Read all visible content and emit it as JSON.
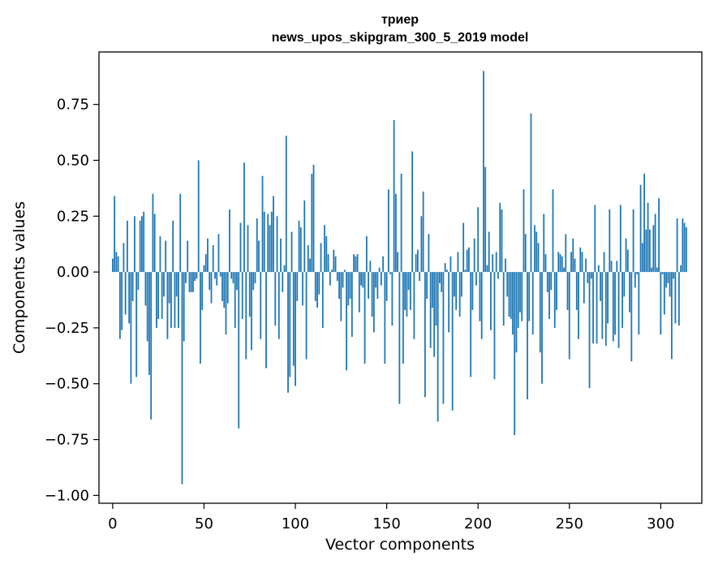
{
  "chart_data": {
    "type": "bar",
    "title": "триер",
    "subtitle": "news_upos_skipgram_300_5_2019 model",
    "xlabel": "Vector components",
    "ylabel": "Components values",
    "xlim": [
      -7.5,
      322.5
    ],
    "ylim": [
      -1.035,
      0.985
    ],
    "xticks": [
      0,
      50,
      100,
      150,
      200,
      250,
      300
    ],
    "yticks": [
      -1.0,
      -0.75,
      -0.5,
      -0.25,
      0.0,
      0.25,
      0.5,
      0.75
    ],
    "ytick_labels": [
      "−1.00",
      "−0.75",
      "−0.50",
      "−0.25",
      "0.00",
      "0.25",
      "0.50",
      "0.75"
    ],
    "bar_color": "#1f77b4",
    "grid": false,
    "legend": "none",
    "values": [
      0.06,
      0.34,
      0.09,
      0.07,
      -0.3,
      -0.26,
      0.13,
      -0.19,
      0.23,
      -0.23,
      -0.5,
      -0.13,
      0.25,
      -0.47,
      -0.08,
      0.23,
      0.25,
      0.27,
      -0.15,
      -0.31,
      -0.46,
      -0.66,
      0.35,
      0.26,
      -0.25,
      -0.21,
      0.16,
      -0.21,
      -0.11,
      0.14,
      -0.3,
      -0.14,
      -0.25,
      0.23,
      -0.25,
      -0.11,
      -0.25,
      0.35,
      -0.95,
      -0.31,
      -0.05,
      0.14,
      -0.09,
      -0.09,
      -0.09,
      -0.04,
      -0.03,
      0.5,
      -0.41,
      -0.17,
      0.03,
      0.08,
      0.15,
      -0.08,
      -0.14,
      0.12,
      -0.03,
      -0.06,
      0.17,
      -0.02,
      -0.13,
      -0.16,
      -0.28,
      -0.14,
      0.28,
      -0.03,
      -0.05,
      -0.25,
      -0.08,
      -0.7,
      0.22,
      -0.21,
      0.49,
      -0.39,
      0.21,
      -0.2,
      -0.35,
      -0.08,
      -0.05,
      0.24,
      0.14,
      -0.3,
      0.43,
      0.27,
      -0.43,
      0.26,
      0.21,
      0.27,
      0.34,
      -0.24,
      0.25,
      -0.3,
      0.15,
      -0.09,
      0.03,
      0.61,
      -0.54,
      -0.47,
      0.18,
      -0.42,
      -0.51,
      -0.13,
      0.23,
      0.2,
      -0.15,
      0.32,
      -0.39,
      0.12,
      0.06,
      0.44,
      0.48,
      -0.13,
      -0.16,
      -0.1,
      0.13,
      -0.25,
      0.21,
      0.16,
      0.08,
      -0.06,
      0.01,
      0.1,
      0.07,
      -0.04,
      -0.12,
      -0.22,
      -0.07,
      0.01,
      -0.44,
      -0.15,
      -0.12,
      -0.29,
      0.08,
      0.07,
      0.08,
      -0.18,
      -0.06,
      -0.07,
      -0.41,
      0.16,
      -0.12,
      0.05,
      -0.2,
      -0.27,
      -0.07,
      -0.12,
      0.02,
      -0.06,
      0.07,
      -0.41,
      -0.13,
      0.37,
      -0.01,
      -0.24,
      0.68,
      0.35,
      0.09,
      -0.59,
      0.44,
      -0.41,
      -0.17,
      -0.2,
      -0.08,
      -0.17,
      0.54,
      -0.3,
      0.08,
      0.1,
      -0.04,
      0.25,
      0.36,
      -0.56,
      -0.12,
      0.17,
      -0.34,
      -0.16,
      -0.38,
      -0.24,
      -0.67,
      -0.05,
      -0.09,
      -0.59,
      0.04,
      0.01,
      -0.27,
      0.07,
      -0.62,
      -0.11,
      -0.17,
      0.09,
      -0.2,
      -0.11,
      0.22,
      0.01,
      0.1,
      0.11,
      -0.47,
      -0.17,
      0.15,
      -0.06,
      0.29,
      -0.22,
      -0.3,
      0.9,
      0.47,
      0.03,
      0.18,
      -0.26,
      0.08,
      -0.48,
      0.09,
      -0.03,
      0.31,
      0.28,
      -0.24,
      0.06,
      -0.11,
      -0.2,
      -0.21,
      -0.28,
      -0.73,
      -0.36,
      -0.25,
      -0.18,
      -0.22,
      0.37,
      0.17,
      -0.57,
      -0.22,
      0.71,
      -0.28,
      0.21,
      0.18,
      0.13,
      -0.36,
      -0.5,
      0.26,
      0.08,
      -0.09,
      -0.21,
      -0.08,
      0.37,
      -0.25,
      -0.17,
      0.09,
      0.08,
      0.07,
      0.02,
      0.17,
      -0.17,
      -0.39,
      0.09,
      0.15,
      0.06,
      -0.17,
      -0.3,
      0.11,
      0.09,
      -0.14,
      0.06,
      -0.05,
      -0.52,
      -0.03,
      -0.32,
      0.3,
      -0.32,
      0.03,
      -0.13,
      -0.3,
      0.09,
      -0.33,
      -0.23,
      0.28,
      0.05,
      -0.31,
      -0.28,
      0.05,
      -0.34,
      0.3,
      -0.25,
      -0.11,
      0.15,
      0.1,
      -0.18,
      -0.4,
      0.28,
      -0.07,
      -0.01,
      -0.28,
      0.39,
      0.13,
      0.44,
      0.19,
      0.31,
      0.19,
      0.02,
      0.21,
      0.26,
      0.02,
      0.33,
      -0.28,
      -0.01,
      -0.19,
      -0.07,
      -0.05,
      -0.11,
      -0.39,
      -0.03,
      -0.23,
      0.24,
      -0.24,
      0.03,
      0.24,
      0.22,
      0.2
    ]
  }
}
